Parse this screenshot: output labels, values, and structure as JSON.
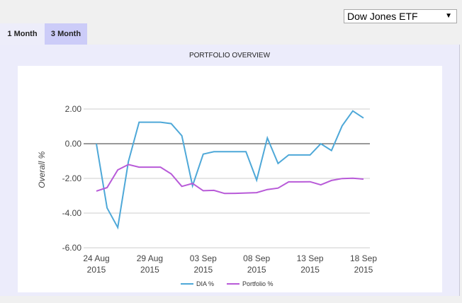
{
  "selector": {
    "value": "Dow Jones ETF",
    "arrow": "▼"
  },
  "tabs": [
    {
      "label": "1 Month"
    },
    {
      "label": "3 Month"
    }
  ],
  "panel_title": "PORTFOLIO OVERVIEW",
  "chart_data": {
    "type": "line",
    "title": "PORTFOLIO OVERVIEW",
    "ylabel": "Overall %",
    "xlabel": "",
    "ylim": [
      -6,
      2.9
    ],
    "yticks": [
      "2.00",
      "0.00",
      "-2.00",
      "-4.00",
      "-6.00"
    ],
    "ytick_values": [
      2,
      0,
      -2,
      -4,
      -6
    ],
    "xticks": [
      {
        "day": 0,
        "line1": "24 Aug",
        "line2": "2015"
      },
      {
        "day": 5,
        "line1": "29 Aug",
        "line2": "2015"
      },
      {
        "day": 10,
        "line1": "03 Sep",
        "line2": "2015"
      },
      {
        "day": 15,
        "line1": "08 Sep",
        "line2": "2015"
      },
      {
        "day": 20,
        "line1": "13 Sep",
        "line2": "2015"
      },
      {
        "day": 25,
        "line1": "18 Sep",
        "line2": "2015"
      }
    ],
    "x_days": [
      0,
      1,
      2,
      3,
      4,
      5,
      6,
      7,
      8,
      9,
      10,
      11,
      12,
      13,
      14,
      15,
      16,
      17,
      18,
      19,
      20,
      21,
      22,
      23,
      24,
      25
    ],
    "series": [
      {
        "name": "DIA %",
        "color": "#4ea8d8",
        "values": [
          0,
          -3.7,
          -4.83,
          -1.03,
          1.24,
          1.24,
          1.24,
          1.16,
          0.46,
          -2.43,
          -0.6,
          -0.46,
          -0.46,
          -0.46,
          -0.46,
          -2.1,
          0.33,
          -1.14,
          -0.65,
          -0.65,
          -0.65,
          0,
          -0.39,
          1.03,
          1.89,
          1.48
        ]
      },
      {
        "name": "Portfolio %",
        "color": "#b85ad8",
        "values": [
          -2.73,
          -2.53,
          -1.51,
          -1.2,
          -1.35,
          -1.35,
          -1.35,
          -1.74,
          -2.46,
          -2.29,
          -2.71,
          -2.69,
          -2.87,
          -2.86,
          -2.84,
          -2.82,
          -2.64,
          -2.56,
          -2.2,
          -2.2,
          -2.19,
          -2.37,
          -2.12,
          -2.01,
          -1.99,
          -2.04
        ]
      }
    ],
    "grid": true,
    "legend": "bottom-center"
  }
}
